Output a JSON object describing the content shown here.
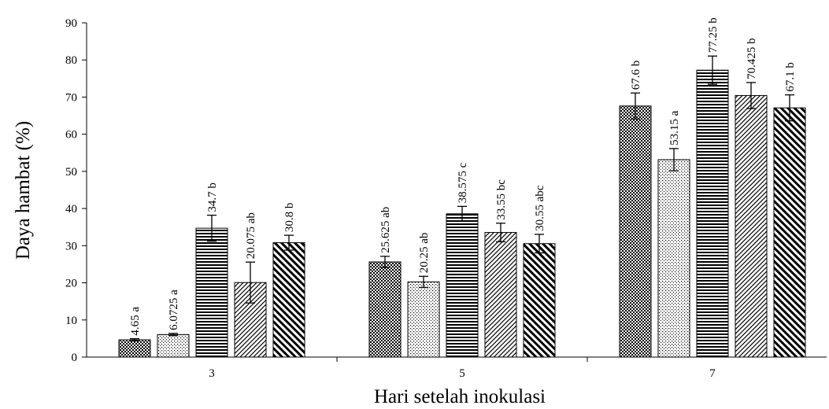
{
  "chart_data": {
    "type": "bar",
    "xlabel": "Hari setelah inokulasi",
    "ylabel": "Daya hambat (%)",
    "ylim": [
      0,
      90
    ],
    "yticks": [
      "0",
      "10",
      "20",
      "30",
      "40",
      "50",
      "60",
      "70",
      "80",
      "90"
    ],
    "categories": [
      "3",
      "5",
      "7"
    ],
    "series": [
      {
        "pattern": "checker",
        "values": [
          4.65,
          25.625,
          67.6
        ],
        "errors": [
          0.3,
          1.5,
          3.5
        ],
        "labels": [
          "4.65 a",
          "25.625 ab",
          "67.6 b"
        ]
      },
      {
        "pattern": "dots",
        "values": [
          6.0725,
          20.25,
          53.15
        ],
        "errors": [
          0.3,
          1.5,
          3.0
        ],
        "labels": [
          "6.0725 a",
          "20.25 ab",
          "53.15 a"
        ]
      },
      {
        "pattern": "horizontal",
        "values": [
          34.7,
          38.575,
          77.25
        ],
        "errors": [
          3.5,
          2.0,
          3.8
        ],
        "labels": [
          "34.7 b",
          "38.575 c",
          "77.25 b"
        ]
      },
      {
        "pattern": "diag-fine",
        "values": [
          20.075,
          33.55,
          70.425
        ],
        "errors": [
          5.5,
          2.5,
          3.5
        ],
        "labels": [
          "20.075 ab",
          "33.55 bc",
          "70.425 b"
        ]
      },
      {
        "pattern": "diag-wide",
        "values": [
          30.8,
          30.55,
          67.1
        ],
        "errors": [
          2.0,
          2.5,
          3.5
        ],
        "labels": [
          "30.8 b",
          "30.55 abc",
          "67.1 b"
        ]
      }
    ],
    "grid": false,
    "legend": "none"
  }
}
